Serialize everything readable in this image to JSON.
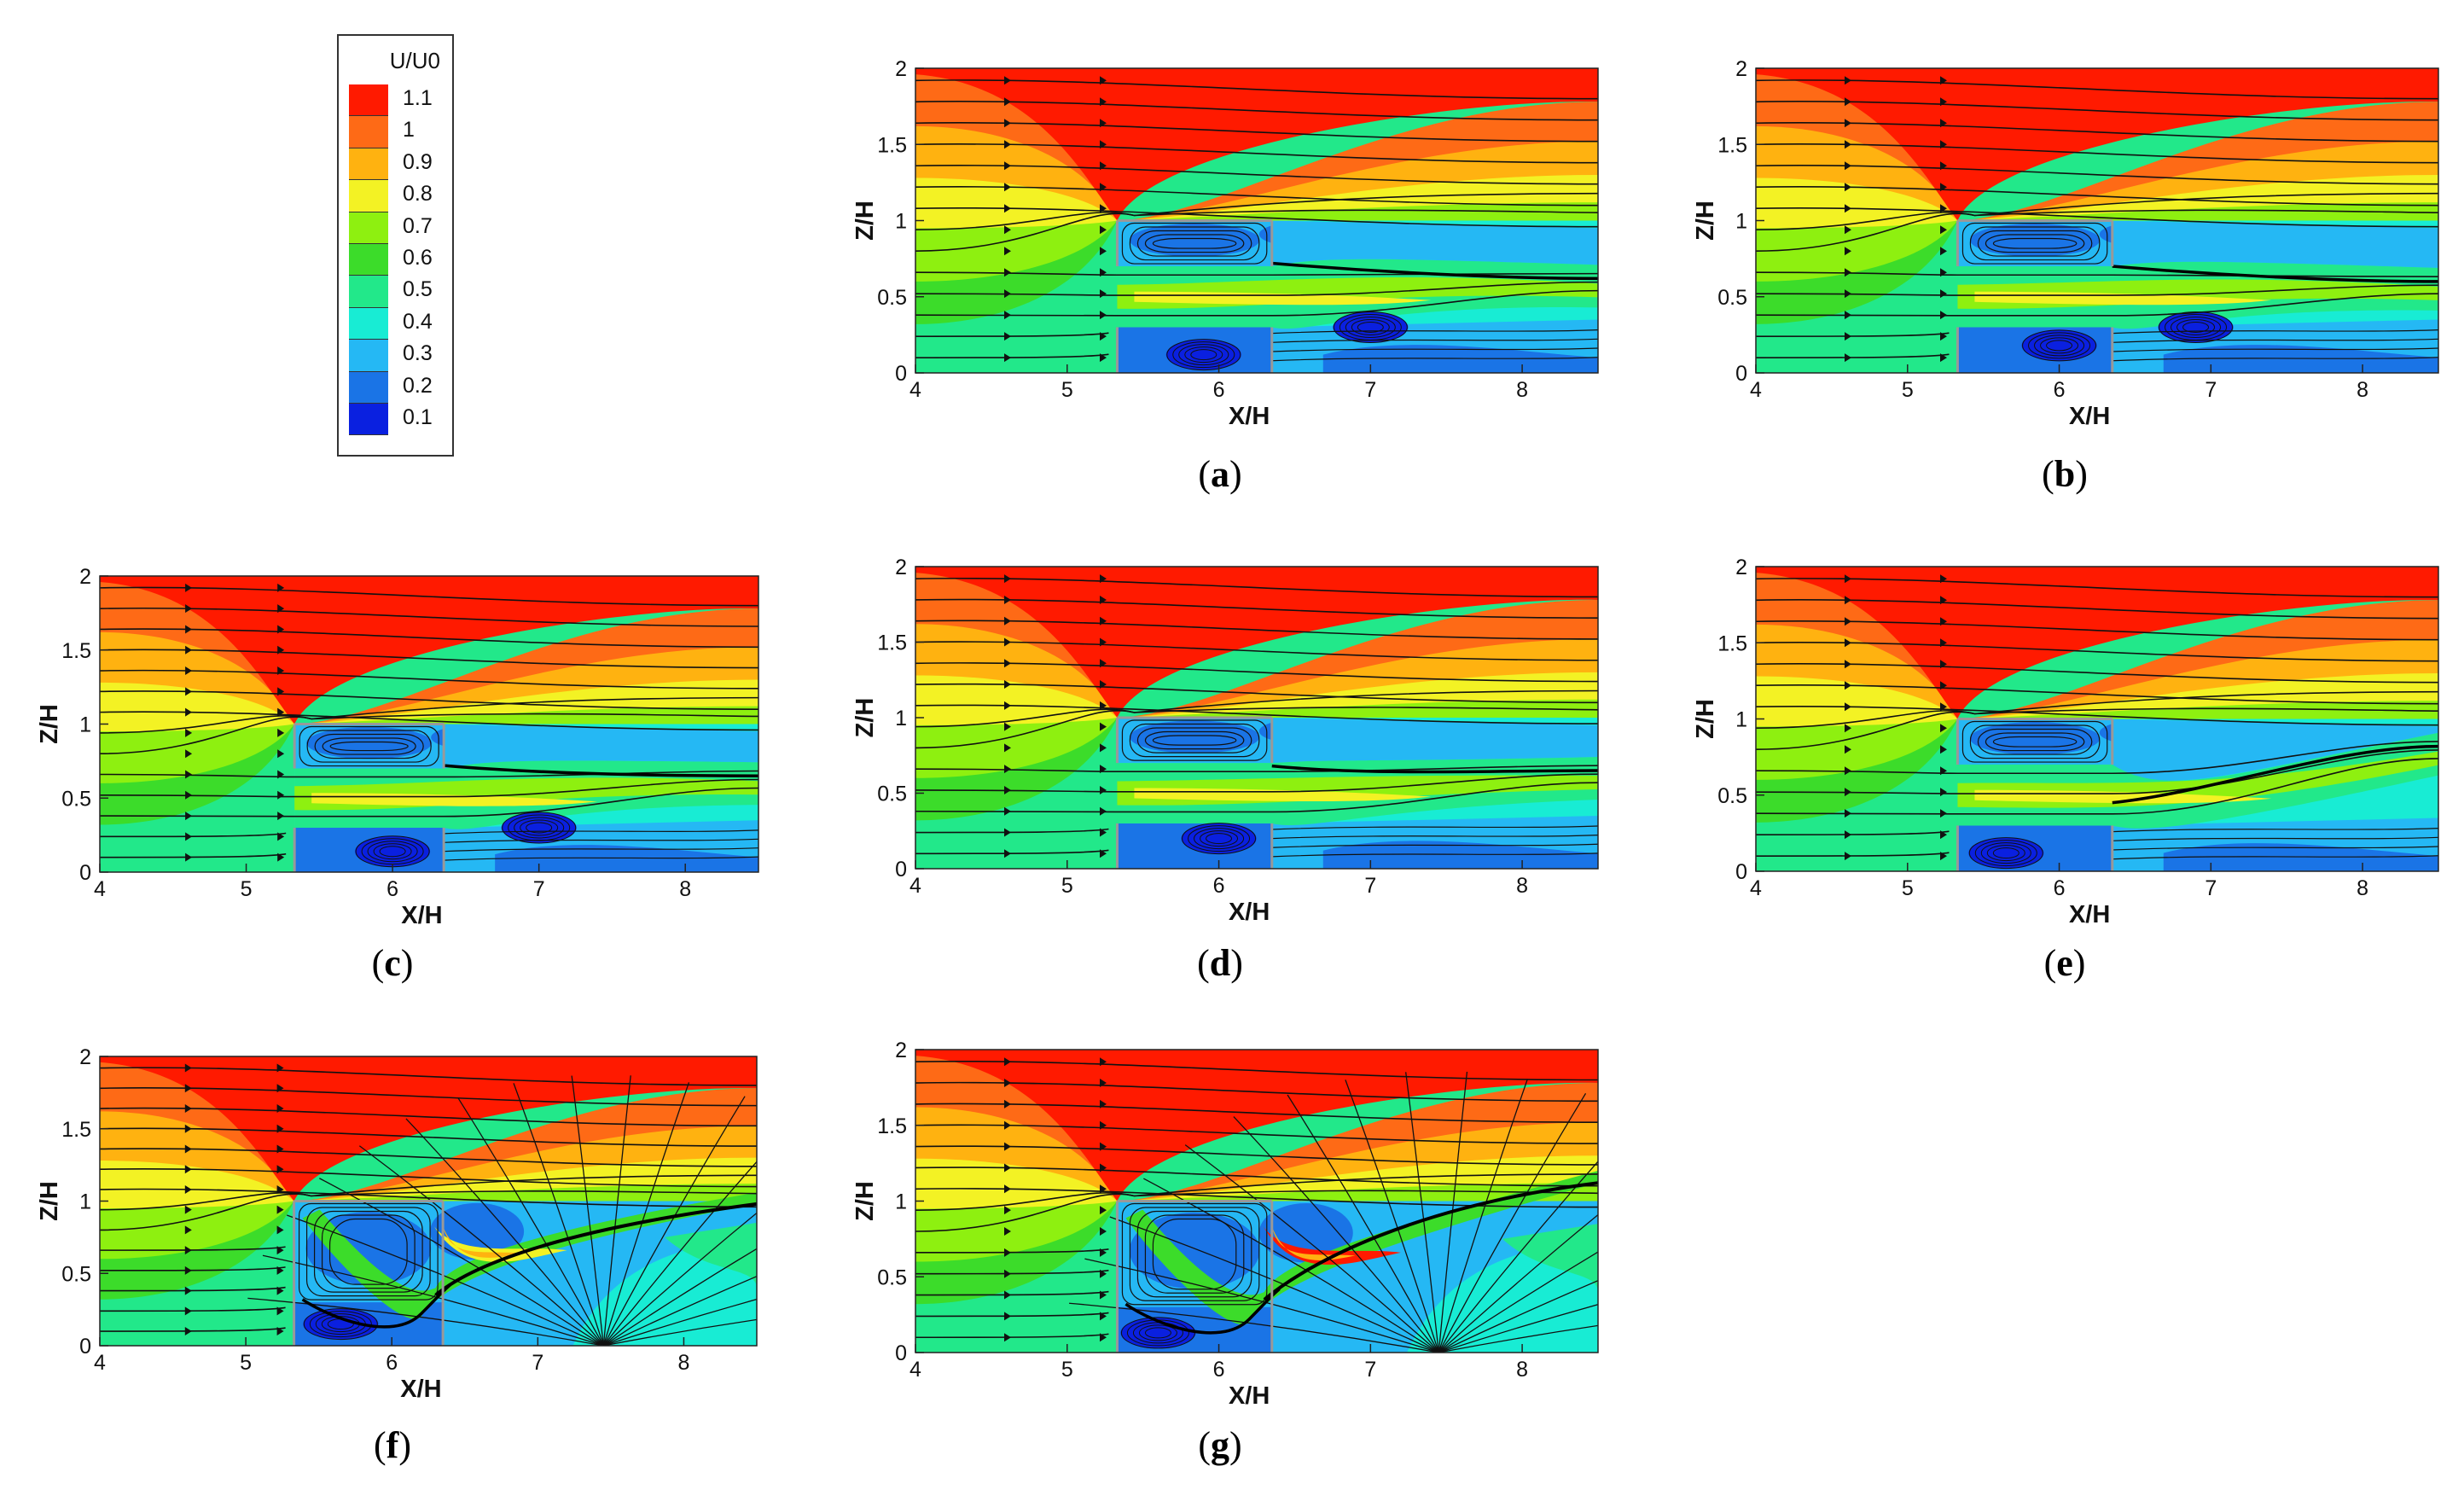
{
  "colors": {
    "bands": [
      "#ff1a00",
      "#fe6a16",
      "#ffb210",
      "#f3f224",
      "#8ef010",
      "#3cdc2a",
      "#22e88a",
      "#18ecd4",
      "#25b8f4",
      "#1a74e6",
      "#0a20e0"
    ],
    "streamline": "#111111",
    "building_edge": "#999999"
  },
  "legend": {
    "title": "U/U0",
    "entries": [
      "1.1",
      "1",
      "0.9",
      "0.8",
      "0.7",
      "0.6",
      "0.5",
      "0.4",
      "0.3",
      "0.2",
      "0.1"
    ]
  },
  "axes_text": {
    "xlabel": "X/H",
    "ylabel": "Z/H",
    "xticks": [
      "4",
      "5",
      "6",
      "7",
      "8"
    ],
    "yticks": [
      "0",
      "0.5",
      "1",
      "1.5",
      "2"
    ]
  },
  "chart_data": [
    {
      "type": "heatmap",
      "panel": "a",
      "quantity": "U/U0",
      "xlabel": "X/H",
      "ylabel": "Z/H",
      "xlim": [
        4,
        8.5
      ],
      "ylim": [
        0,
        2
      ],
      "xticks": [
        4,
        5,
        6,
        7,
        8
      ],
      "yticks": [
        0,
        0.5,
        1,
        1.5,
        2
      ],
      "colorbar": [
        0.1,
        0.2,
        0.3,
        0.4,
        0.5,
        0.6,
        0.7,
        0.8,
        0.9,
        1,
        1.1
      ],
      "structure": {
        "front_x": 5.33,
        "rear_x": 6.35,
        "roof_z": 1.0,
        "gap_top": 0.7,
        "gap_bottom": 0.3
      },
      "shear_layer": [
        [
          6.35,
          0.72
        ],
        [
          7.0,
          0.7
        ],
        [
          8.5,
          0.62
        ]
      ],
      "vortex_centers": [
        [
          5.9,
          0.12
        ],
        [
          7.0,
          0.3
        ]
      ]
    },
    {
      "type": "heatmap",
      "panel": "b",
      "quantity": "U/U0",
      "xlabel": "X/H",
      "ylabel": "Z/H",
      "xlim": [
        4,
        8.5
      ],
      "ylim": [
        0,
        2
      ],
      "xticks": [
        4,
        5,
        6,
        7,
        8
      ],
      "yticks": [
        0,
        0.5,
        1,
        1.5,
        2
      ],
      "colorbar": [
        0.1,
        0.2,
        0.3,
        0.4,
        0.5,
        0.6,
        0.7,
        0.8,
        0.9,
        1,
        1.1
      ],
      "structure": {
        "front_x": 5.33,
        "rear_x": 6.35,
        "roof_z": 1.0,
        "gap_top": 0.7,
        "gap_bottom": 0.3
      },
      "shear_layer": [
        [
          6.35,
          0.7
        ],
        [
          7.0,
          0.68
        ],
        [
          8.5,
          0.6
        ]
      ],
      "vortex_centers": [
        [
          6.0,
          0.18
        ],
        [
          6.9,
          0.3
        ]
      ]
    },
    {
      "type": "heatmap",
      "panel": "c",
      "quantity": "U/U0",
      "xlabel": "X/H",
      "ylabel": "Z/H",
      "xlim": [
        4,
        8.5
      ],
      "ylim": [
        0,
        2
      ],
      "xticks": [
        4,
        5,
        6,
        7,
        8
      ],
      "yticks": [
        0,
        0.5,
        1,
        1.5,
        2
      ],
      "colorbar": [
        0.1,
        0.2,
        0.3,
        0.4,
        0.5,
        0.6,
        0.7,
        0.8,
        0.9,
        1,
        1.1
      ],
      "structure": {
        "front_x": 5.33,
        "rear_x": 6.35,
        "roof_z": 1.0,
        "gap_top": 0.7,
        "gap_bottom": 0.3
      },
      "shear_layer": [
        [
          6.35,
          0.72
        ],
        [
          7.0,
          0.7
        ],
        [
          8.5,
          0.65
        ]
      ],
      "vortex_centers": [
        [
          6.0,
          0.14
        ],
        [
          7.0,
          0.3
        ]
      ]
    },
    {
      "type": "heatmap",
      "panel": "d",
      "quantity": "U/U0",
      "xlabel": "X/H",
      "ylabel": "Z/H",
      "xlim": [
        4,
        8.5
      ],
      "ylim": [
        0,
        2
      ],
      "xticks": [
        4,
        5,
        6,
        7,
        8
      ],
      "yticks": [
        0,
        0.5,
        1,
        1.5,
        2
      ],
      "colorbar": [
        0.1,
        0.2,
        0.3,
        0.4,
        0.5,
        0.6,
        0.7,
        0.8,
        0.9,
        1,
        1.1
      ],
      "structure": {
        "front_x": 5.33,
        "rear_x": 6.35,
        "roof_z": 1.0,
        "gap_top": 0.7,
        "gap_bottom": 0.3
      },
      "shear_layer": [
        [
          6.35,
          0.68
        ],
        [
          7.0,
          0.65
        ],
        [
          8.5,
          0.65
        ]
      ],
      "vortex_centers": [
        [
          6.0,
          0.2
        ]
      ]
    },
    {
      "type": "heatmap",
      "panel": "e",
      "quantity": "U/U0",
      "xlabel": "X/H",
      "ylabel": "Z/H",
      "xlim": [
        4,
        8.5
      ],
      "ylim": [
        0,
        2
      ],
      "xticks": [
        4,
        5,
        6,
        7,
        8
      ],
      "yticks": [
        0,
        0.5,
        1,
        1.5,
        2
      ],
      "colorbar": [
        0.1,
        0.2,
        0.3,
        0.4,
        0.5,
        0.6,
        0.7,
        0.8,
        0.9,
        1,
        1.1
      ],
      "structure": {
        "front_x": 5.33,
        "rear_x": 6.35,
        "roof_z": 1.0,
        "gap_top": 0.7,
        "gap_bottom": 0.3
      },
      "shear_layer": [
        [
          6.4,
          0.45
        ],
        [
          7.0,
          0.55
        ],
        [
          8.5,
          0.82
        ]
      ],
      "vortex_centers": [
        [
          5.65,
          0.12
        ]
      ]
    },
    {
      "type": "heatmap",
      "panel": "f",
      "quantity": "U/U0",
      "xlabel": "X/H",
      "ylabel": "Z/H",
      "xlim": [
        4,
        8.5
      ],
      "ylim": [
        0,
        2
      ],
      "xticks": [
        4,
        5,
        6,
        7,
        8
      ],
      "yticks": [
        0,
        0.5,
        1,
        1.5,
        2
      ],
      "colorbar": [
        0.1,
        0.2,
        0.3,
        0.4,
        0.5,
        0.6,
        0.7,
        0.8,
        0.9,
        1,
        1.1
      ],
      "structure": {
        "front_x": 5.33,
        "rear_x": 6.35,
        "roof_z": 1.0,
        "gap_top": 0.3,
        "gap_bottom": 0.3
      },
      "shear_layer": [
        [
          6.4,
          0.45
        ],
        [
          7.0,
          0.7
        ],
        [
          8.5,
          0.98
        ]
      ],
      "vortex_centers": [
        [
          5.65,
          0.15
        ]
      ]
    },
    {
      "type": "heatmap",
      "panel": "g",
      "quantity": "U/U0",
      "xlabel": "X/H",
      "ylabel": "Z/H",
      "xlim": [
        4,
        8.5
      ],
      "ylim": [
        0,
        2
      ],
      "xticks": [
        4,
        5,
        6,
        7,
        8
      ],
      "yticks": [
        0,
        0.5,
        1,
        1.5,
        2
      ],
      "colorbar": [
        0.1,
        0.2,
        0.3,
        0.4,
        0.5,
        0.6,
        0.7,
        0.8,
        0.9,
        1,
        1.1
      ],
      "structure": {
        "front_x": 5.33,
        "rear_x": 6.35,
        "roof_z": 1.0,
        "gap_top": 0.3,
        "gap_bottom": 0.3
      },
      "shear_layer": [
        [
          6.4,
          0.3
        ],
        [
          7.0,
          0.85
        ],
        [
          8.5,
          1.12
        ]
      ],
      "vortex_centers": [
        [
          5.6,
          0.13
        ]
      ]
    }
  ],
  "panels": [
    {
      "id": "a",
      "label": "a"
    },
    {
      "id": "b",
      "label": "b"
    },
    {
      "id": "c",
      "label": "c"
    },
    {
      "id": "d",
      "label": "d"
    },
    {
      "id": "e",
      "label": "e"
    },
    {
      "id": "f",
      "label": "f"
    },
    {
      "id": "g",
      "label": "g"
    }
  ]
}
